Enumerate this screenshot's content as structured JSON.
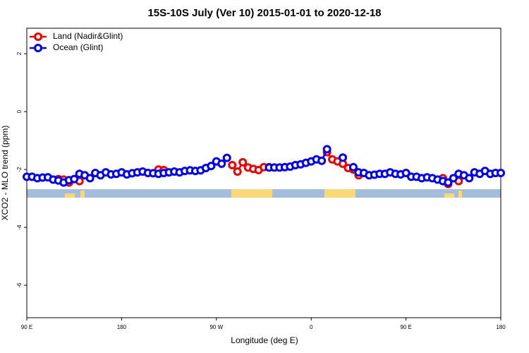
{
  "chart_data": {
    "type": "line",
    "title": "15S-10S July (Ver 10)   2015-01-01 to 2020-12-18",
    "x_label": "Longitude (deg E)",
    "y_label": "XCO2 - MLO trend (ppm)",
    "x": [
      90,
      95,
      100,
      105,
      110,
      115,
      120,
      125,
      130,
      135,
      140,
      145,
      150,
      155,
      160,
      165,
      170,
      175,
      180,
      185,
      190,
      195,
      200,
      205,
      210,
      215,
      220,
      225,
      230,
      235,
      240,
      245,
      250,
      255,
      260,
      265,
      270,
      275,
      280,
      285,
      290,
      295,
      300,
      305,
      310,
      315,
      320,
      325,
      330,
      335,
      340,
      345,
      350,
      355,
      360,
      365,
      370,
      375,
      380,
      385,
      390,
      395,
      400,
      405,
      410,
      415,
      420,
      425,
      430,
      435,
      440,
      445,
      450,
      455,
      460,
      465,
      470,
      475,
      480,
      485,
      490,
      495,
      500,
      505,
      510,
      515,
      520,
      525,
      530,
      535,
      540
    ],
    "series": [
      {
        "name": "Land (Nadir&Glint)",
        "color": "#ee0000",
        "values": [
          null,
          null,
          null,
          null,
          null,
          null,
          -2.33,
          -2.35,
          -2.45,
          null,
          -2.4,
          null,
          null,
          null,
          null,
          null,
          null,
          null,
          null,
          null,
          null,
          null,
          null,
          null,
          null,
          -2.0,
          -2.02,
          null,
          null,
          null,
          null,
          null,
          null,
          null,
          null,
          null,
          null,
          null,
          null,
          -1.85,
          -2.07,
          -1.75,
          -1.93,
          -1.98,
          -2.02,
          -1.92,
          -1.92,
          null,
          null,
          null,
          null,
          null,
          null,
          null,
          null,
          null,
          null,
          -1.4,
          -1.65,
          -1.72,
          -1.8,
          -1.95,
          -2.0,
          -2.2,
          null,
          null,
          null,
          null,
          null,
          null,
          null,
          null,
          null,
          null,
          null,
          null,
          null,
          null,
          null,
          -2.3,
          -2.5,
          null,
          -2.4,
          null,
          null,
          null,
          null,
          null,
          null,
          null,
          null
        ]
      },
      {
        "name": "Ocean (Glint)",
        "color": "#0000ee",
        "values": [
          -2.25,
          -2.25,
          -2.3,
          -2.28,
          -2.27,
          -2.35,
          -2.38,
          -2.45,
          -2.37,
          -2.33,
          -2.15,
          -2.2,
          -2.3,
          -2.12,
          -2.2,
          -2.1,
          -2.17,
          -2.15,
          -2.1,
          -2.17,
          -2.13,
          -2.1,
          -2.07,
          -2.12,
          -2.13,
          -2.15,
          -2.12,
          -2.1,
          -2.07,
          -2.1,
          -2.05,
          -2.03,
          -2.05,
          -2.03,
          -1.95,
          -1.88,
          -1.72,
          -1.8,
          -1.6,
          null,
          null,
          null,
          null,
          null,
          null,
          null,
          -1.93,
          -1.93,
          -1.93,
          -1.92,
          -1.9,
          -1.85,
          -1.82,
          -1.77,
          -1.72,
          -1.65,
          -1.7,
          -1.3,
          null,
          null,
          -1.59,
          null,
          -1.92,
          -2.1,
          -2.12,
          -2.2,
          -2.18,
          -2.15,
          -2.15,
          -2.1,
          -2.15,
          -2.17,
          -2.12,
          -2.25,
          -2.25,
          -2.3,
          -2.27,
          -2.3,
          -2.35,
          -2.4,
          -2.45,
          -2.3,
          -2.15,
          -2.2,
          -2.3,
          -2.1,
          -2.15,
          -2.05,
          -2.15,
          -2.12,
          -2.12
        ]
      }
    ],
    "xlim": [
      90,
      540
    ],
    "xticks": [
      {
        "value": 90,
        "label": "90 E"
      },
      {
        "value": 180,
        "label": "180"
      },
      {
        "value": 270,
        "label": "90 W"
      },
      {
        "value": 360,
        "label": "0"
      },
      {
        "value": 450,
        "label": "90 E"
      },
      {
        "value": 540,
        "label": "180"
      }
    ],
    "ylim": [
      -7.12,
      2.88
    ],
    "yticks": [
      2,
      0,
      -2,
      -4,
      -6
    ],
    "legend": "top-left"
  }
}
